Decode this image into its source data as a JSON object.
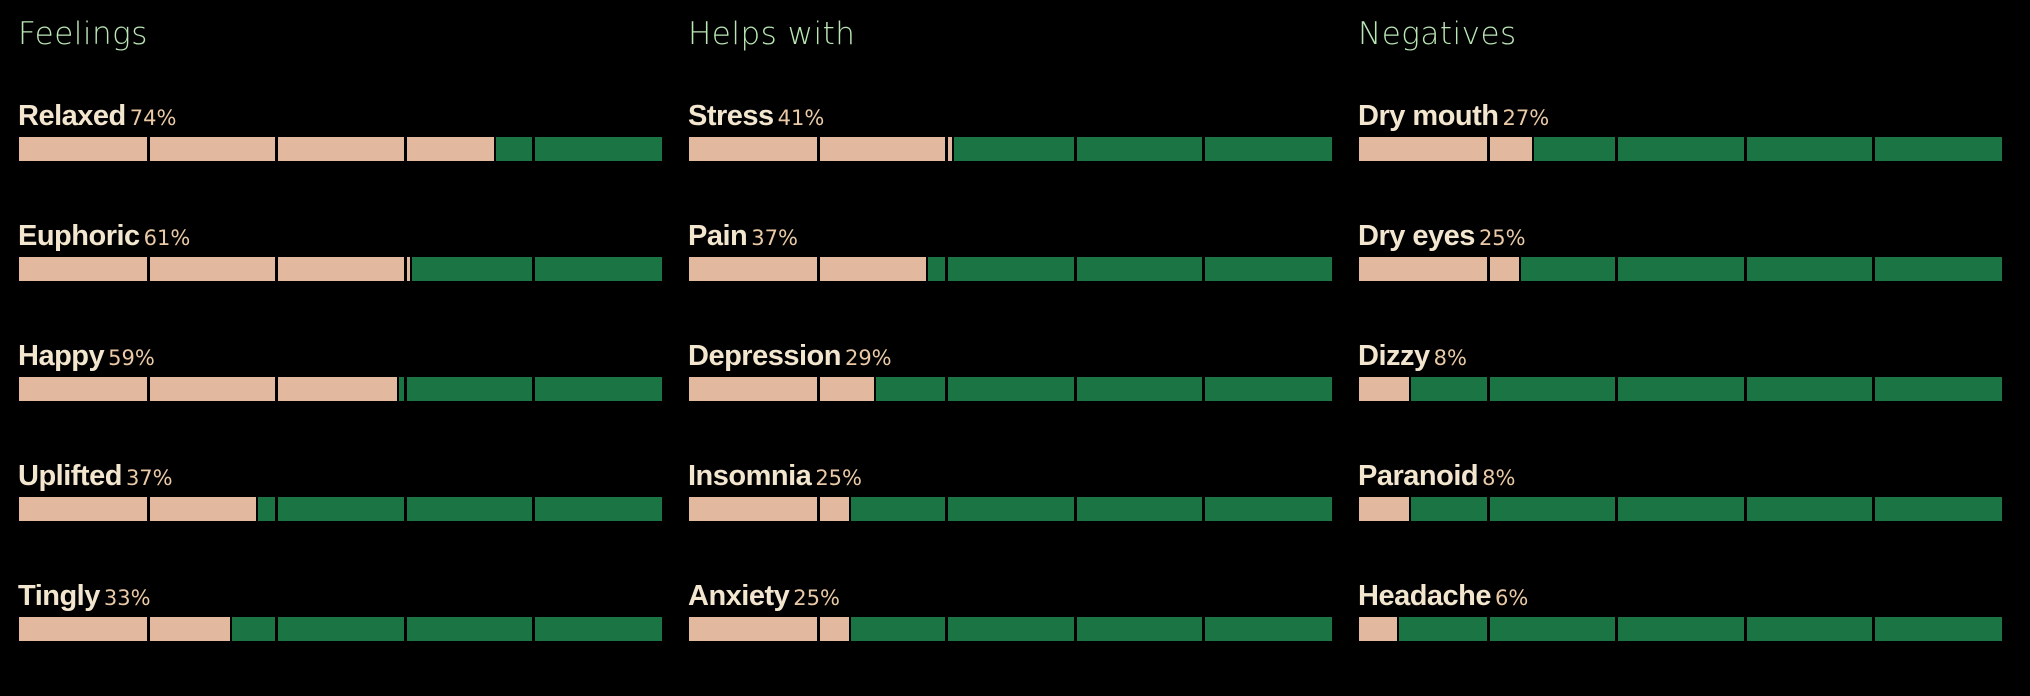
{
  "colors": {
    "background": "#000000",
    "title": "#b9e6b4",
    "label": "#f3e6cf",
    "percent": "#e9c9a6",
    "bar_fill": "#e2b89e",
    "bar_track": "#1a7443"
  },
  "columns": [
    {
      "title": "Feelings",
      "items": [
        {
          "label": "Relaxed",
          "percent_text": "74%",
          "value": 74
        },
        {
          "label": "Euphoric",
          "percent_text": "61%",
          "value": 61
        },
        {
          "label": "Happy",
          "percent_text": "59%",
          "value": 59
        },
        {
          "label": "Uplifted",
          "percent_text": "37%",
          "value": 37
        },
        {
          "label": "Tingly",
          "percent_text": "33%",
          "value": 33
        }
      ]
    },
    {
      "title": "Helps with",
      "items": [
        {
          "label": "Stress",
          "percent_text": "41%",
          "value": 41
        },
        {
          "label": "Pain",
          "percent_text": "37%",
          "value": 37
        },
        {
          "label": "Depression",
          "percent_text": "29%",
          "value": 29
        },
        {
          "label": "Insomnia",
          "percent_text": "25%",
          "value": 25
        },
        {
          "label": "Anxiety",
          "percent_text": "25%",
          "value": 25
        }
      ]
    },
    {
      "title": "Negatives",
      "items": [
        {
          "label": "Dry mouth",
          "percent_text": "27%",
          "value": 27
        },
        {
          "label": "Dry eyes",
          "percent_text": "25%",
          "value": 25
        },
        {
          "label": "Dizzy",
          "percent_text": "8%",
          "value": 8
        },
        {
          "label": "Paranoid",
          "percent_text": "8%",
          "value": 8
        },
        {
          "label": "Headache",
          "percent_text": "6%",
          "value": 6
        }
      ]
    }
  ]
}
